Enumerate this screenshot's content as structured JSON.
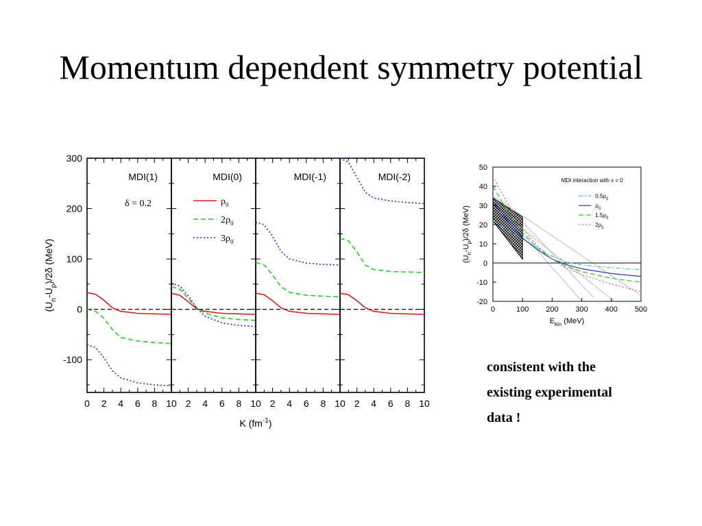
{
  "slide": {
    "title": "Momentum dependent symmetry potential",
    "note_lines": [
      "consistent with the",
      "existing experimental",
      "data !"
    ]
  },
  "colors": {
    "rho0": "#e31a1c",
    "rho2": "#22cc22",
    "rho3": "#1f1fd0",
    "axis": "#000000"
  },
  "chart_data": [
    {
      "type": "line",
      "ylabel_parts": {
        "main": "(U",
        "sub_n": "n",
        "mid": "-U",
        "sub_p": "p",
        "end": ")/2δ (MeV)"
      },
      "xlabel_parts": {
        "main": "K (fm",
        "sup": "-1",
        "end": ")"
      },
      "ylim": [
        -165,
        300
      ],
      "xlim": [
        0,
        10
      ],
      "yticks": [
        "300",
        "200",
        "100",
        "0",
        "-100"
      ],
      "ytick_values": [
        300,
        200,
        100,
        0,
        -100
      ],
      "xticks": [
        "0",
        "2",
        "4",
        "6",
        "8",
        "10",
        "2",
        "4",
        "6",
        "8",
        "10",
        "2",
        "4",
        "6",
        "8",
        "10",
        "2",
        "4",
        "6",
        "8",
        "10"
      ],
      "annotation": "δ = 0.2",
      "legend": [
        {
          "label": "ρ",
          "sub": "0",
          "style": "solid"
        },
        {
          "label": "2ρ",
          "sub": "0",
          "style": "dashed"
        },
        {
          "label": "3ρ",
          "sub": "0",
          "style": "dotted"
        }
      ],
      "panels": [
        {
          "title": "MDI(1)",
          "series": [
            {
              "name": "ρ0",
              "x": [
                0,
                1,
                2,
                3,
                4,
                6,
                8,
                10
              ],
              "y": [
                33,
                30,
                18,
                3,
                -4,
                -8,
                -9,
                -10
              ]
            },
            {
              "name": "2ρ0",
              "x": [
                0,
                1,
                2,
                3,
                4,
                6,
                8,
                10
              ],
              "y": [
                0,
                -4,
                -18,
                -40,
                -56,
                -63,
                -66,
                -68
              ]
            },
            {
              "name": "3ρ0",
              "x": [
                0,
                1,
                2,
                3,
                4,
                6,
                8,
                10
              ],
              "y": [
                -70,
                -76,
                -96,
                -122,
                -136,
                -146,
                -150,
                -152
              ]
            }
          ]
        },
        {
          "title": "MDI(0)",
          "series": [
            {
              "name": "ρ0",
              "x": [
                0,
                1,
                2,
                3,
                4,
                6,
                8,
                10
              ],
              "y": [
                32,
                28,
                15,
                1,
                -4,
                -8,
                -9,
                -10
              ]
            },
            {
              "name": "2ρ0",
              "x": [
                0,
                1,
                2,
                3,
                4,
                6,
                8,
                10
              ],
              "y": [
                45,
                40,
                22,
                3,
                -8,
                -17,
                -20,
                -22
              ]
            },
            {
              "name": "3ρ0",
              "x": [
                0,
                1,
                2,
                3,
                4,
                6,
                8,
                10
              ],
              "y": [
                52,
                46,
                27,
                2,
                -14,
                -27,
                -32,
                -34
              ]
            }
          ]
        },
        {
          "title": "MDI(-1)",
          "series": [
            {
              "name": "ρ0",
              "x": [
                0,
                1,
                2,
                3,
                4,
                6,
                8,
                10
              ],
              "y": [
                32,
                29,
                17,
                3,
                -4,
                -8,
                -9,
                -10
              ]
            },
            {
              "name": "2ρ0",
              "x": [
                0,
                1,
                2,
                3,
                4,
                6,
                8,
                10
              ],
              "y": [
                93,
                88,
                68,
                45,
                34,
                28,
                26,
                25
              ]
            },
            {
              "name": "3ρ0",
              "x": [
                0,
                1,
                2,
                3,
                4,
                6,
                8,
                10
              ],
              "y": [
                173,
                168,
                145,
                115,
                100,
                92,
                89,
                88
              ]
            }
          ]
        },
        {
          "title": "MDI(-2)",
          "series": [
            {
              "name": "ρ0",
              "x": [
                0,
                1,
                2,
                3,
                4,
                6,
                8,
                10
              ],
              "y": [
                32,
                29,
                17,
                3,
                -4,
                -8,
                -9,
                -10
              ]
            },
            {
              "name": "2ρ0",
              "x": [
                0,
                1,
                2,
                3,
                4,
                6,
                8,
                10
              ],
              "y": [
                141,
                136,
                114,
                88,
                79,
                75,
                74,
                73
              ]
            },
            {
              "name": "3ρ0",
              "x": [
                0,
                1,
                2,
                3,
                4,
                6,
                8,
                10
              ],
              "y": [
                300,
                292,
                262,
                232,
                221,
                215,
                212,
                210
              ]
            }
          ]
        }
      ]
    },
    {
      "type": "line",
      "title": "MDI interaction with x = 0",
      "ylabel_parts": {
        "main": "(U",
        "sub_n": "n",
        "mid": "-U",
        "sub_p": "p",
        "end": ")/2δ (MeV)"
      },
      "xlabel_parts": {
        "main": "E",
        "sub": "kin",
        "end": " (MeV)"
      },
      "xlim": [
        0,
        500
      ],
      "ylim": [
        -20,
        50
      ],
      "xticks": [
        0,
        100,
        200,
        300,
        400,
        500
      ],
      "yticks": [
        50,
        40,
        30,
        20,
        10,
        0,
        -10,
        -20
      ],
      "legend": [
        {
          "label": "0.5ρ",
          "sub": "0",
          "style": "dashdot",
          "color": "#20d0d0"
        },
        {
          "label": "ρ",
          "sub": "0",
          "style": "solid",
          "color": "#3030d0"
        },
        {
          "label": "1.5ρ",
          "sub": "0",
          "style": "dashed",
          "color": "#22cc22"
        },
        {
          "label": "2ρ",
          "sub": "0",
          "style": "dotted",
          "color": "#e0506a"
        }
      ],
      "series": [
        {
          "name": "0.5ρ0",
          "x": [
            0,
            50,
            100,
            150,
            200,
            250,
            300,
            400,
            500
          ],
          "y": [
            22,
            17,
            12.5,
            8,
            3.5,
            0.5,
            -1,
            -2.5,
            -3.5
          ]
        },
        {
          "name": "ρ0",
          "x": [
            0,
            50,
            100,
            150,
            200,
            250,
            300,
            400,
            500
          ],
          "y": [
            32,
            22,
            13,
            7,
            2,
            -1,
            -3,
            -5.5,
            -7
          ]
        },
        {
          "name": "1.5ρ0",
          "x": [
            0,
            50,
            100,
            150,
            200,
            250,
            300,
            400,
            500
          ],
          "y": [
            40,
            27,
            16,
            8,
            2,
            -2,
            -4.5,
            -8,
            -10
          ]
        },
        {
          "name": "2ρ0",
          "x": [
            0,
            50,
            100,
            150,
            200,
            250,
            300,
            400,
            500
          ],
          "y": [
            45,
            31,
            18,
            9,
            2,
            -3,
            -6,
            -11,
            -15
          ]
        }
      ],
      "band": {
        "x": [
          0,
          100
        ],
        "y_low_at_0": 22,
        "y_high_at_0": 34,
        "y_low_at_100": 2,
        "y_high_at_100": 24
      },
      "gray_lines": [
        {
          "x": [
            0,
            500
          ],
          "y": [
            35,
            -17
          ]
        },
        {
          "x": [
            0,
            410
          ],
          "y": [
            30,
            -20
          ]
        },
        {
          "x": [
            0,
            300
          ],
          "y": [
            33,
            -20
          ]
        },
        {
          "x": [
            60,
            340
          ],
          "y": [
            28,
            -18
          ]
        }
      ]
    }
  ]
}
